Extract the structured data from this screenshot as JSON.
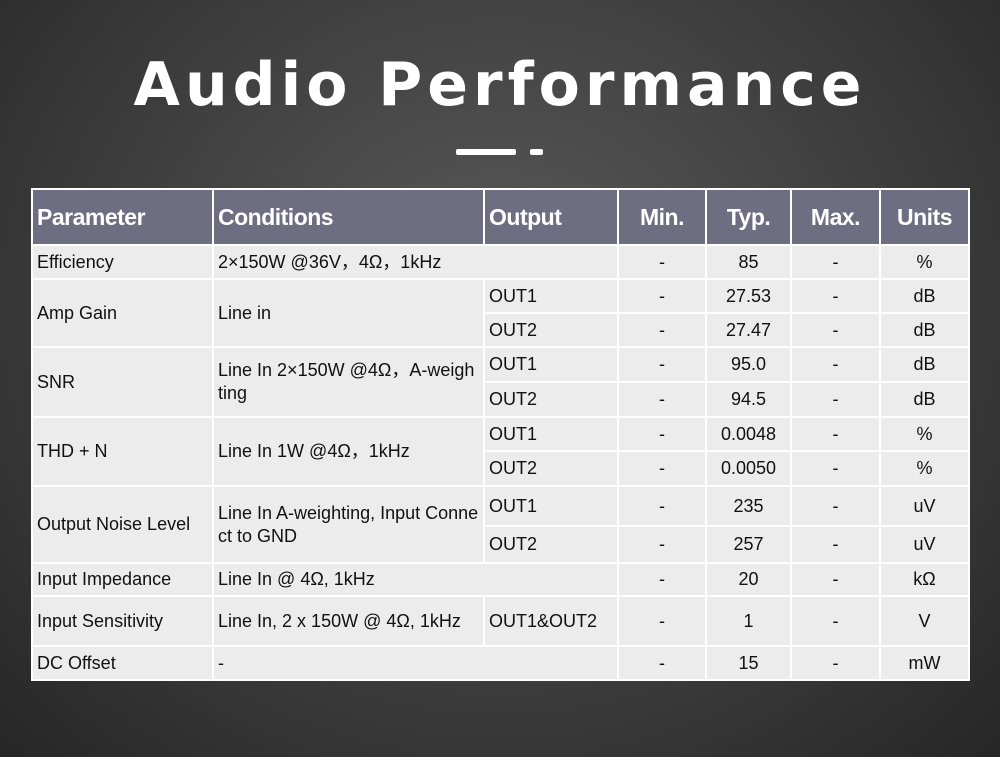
{
  "header": {
    "title": "Audio Performance"
  },
  "table": {
    "columns": [
      "Parameter",
      "Conditions",
      "Output",
      "Min.",
      "Typ.",
      "Max.",
      "Units"
    ],
    "rows": [
      [
        "Efficiency",
        "2×150W @36V，4Ω，1kHz",
        "-",
        "85",
        "-",
        "%"
      ],
      [
        "Amp Gain",
        "Line in",
        "OUT1",
        "-",
        "27.53",
        "-",
        "dB"
      ],
      [
        "OUT2",
        "-",
        "27.47",
        "-",
        "dB"
      ],
      [
        "SNR",
        "Line In 2×150W @4Ω，A-weighting",
        "OUT1",
        "-",
        "95.0",
        "-",
        "dB"
      ],
      [
        "OUT2",
        "-",
        "94.5",
        "-",
        "dB"
      ],
      [
        "THD + N",
        "Line In 1W @4Ω，1kHz",
        "OUT1",
        "-",
        "0.0048",
        "-",
        "%"
      ],
      [
        "OUT2",
        "-",
        "0.0050",
        "-",
        "%"
      ],
      [
        "Output Noise Level",
        "Line In A-weighting, Input Connect to GND",
        "OUT1",
        "-",
        "235",
        "-",
        "uV"
      ],
      [
        "OUT2",
        "-",
        "257",
        "-",
        "uV"
      ],
      [
        "Input Impedance",
        "Line In @ 4Ω, 1kHz",
        "-",
        "20",
        "-",
        "kΩ"
      ],
      [
        "Input Sensitivity",
        "Line In, 2 x 150W @ 4Ω, 1kHz",
        "OUT1&OUT2",
        "-",
        "1",
        "-",
        "V"
      ],
      [
        "DC Offset",
        "-",
        "-",
        "15",
        "-",
        "mW"
      ]
    ]
  }
}
